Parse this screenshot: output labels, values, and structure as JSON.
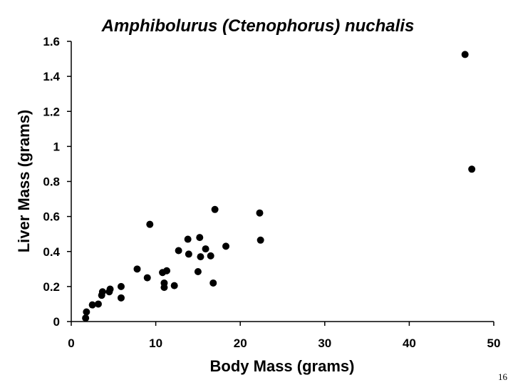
{
  "chart_data": {
    "type": "scatter",
    "title": "Amphibolurus (Ctenophorus) nuchalis",
    "xlabel": "Body Mass (grams)",
    "ylabel": "Liver Mass (grams)",
    "xlim": [
      0,
      50
    ],
    "ylim": [
      0,
      1.6
    ],
    "x_ticks": [
      "0",
      "10",
      "20",
      "30",
      "40",
      "50"
    ],
    "y_ticks": [
      "0",
      "0.2",
      "0.4",
      "0.6",
      "0.8",
      "1",
      "1.2",
      "1.4",
      "1.6"
    ],
    "grid": false,
    "marker_color": "#000000",
    "points": [
      {
        "x": 1.7,
        "y": 0.02
      },
      {
        "x": 1.8,
        "y": 0.055
      },
      {
        "x": 2.5,
        "y": 0.095
      },
      {
        "x": 3.2,
        "y": 0.1
      },
      {
        "x": 3.6,
        "y": 0.15
      },
      {
        "x": 3.7,
        "y": 0.17
      },
      {
        "x": 4.5,
        "y": 0.17
      },
      {
        "x": 4.6,
        "y": 0.185
      },
      {
        "x": 5.9,
        "y": 0.2
      },
      {
        "x": 5.9,
        "y": 0.135
      },
      {
        "x": 7.8,
        "y": 0.3
      },
      {
        "x": 9.0,
        "y": 0.25
      },
      {
        "x": 9.3,
        "y": 0.555
      },
      {
        "x": 10.8,
        "y": 0.28
      },
      {
        "x": 11.0,
        "y": 0.22
      },
      {
        "x": 11.0,
        "y": 0.195
      },
      {
        "x": 11.3,
        "y": 0.29
      },
      {
        "x": 12.2,
        "y": 0.205
      },
      {
        "x": 12.7,
        "y": 0.405
      },
      {
        "x": 13.8,
        "y": 0.47
      },
      {
        "x": 13.9,
        "y": 0.385
      },
      {
        "x": 15.0,
        "y": 0.285
      },
      {
        "x": 15.2,
        "y": 0.48
      },
      {
        "x": 15.3,
        "y": 0.37
      },
      {
        "x": 15.9,
        "y": 0.415
      },
      {
        "x": 16.5,
        "y": 0.375
      },
      {
        "x": 16.8,
        "y": 0.22
      },
      {
        "x": 17.0,
        "y": 0.64
      },
      {
        "x": 18.3,
        "y": 0.43
      },
      {
        "x": 22.3,
        "y": 0.62
      },
      {
        "x": 22.4,
        "y": 0.465
      },
      {
        "x": 46.6,
        "y": 1.525
      },
      {
        "x": 47.4,
        "y": 0.87
      }
    ]
  },
  "page_number": "16"
}
